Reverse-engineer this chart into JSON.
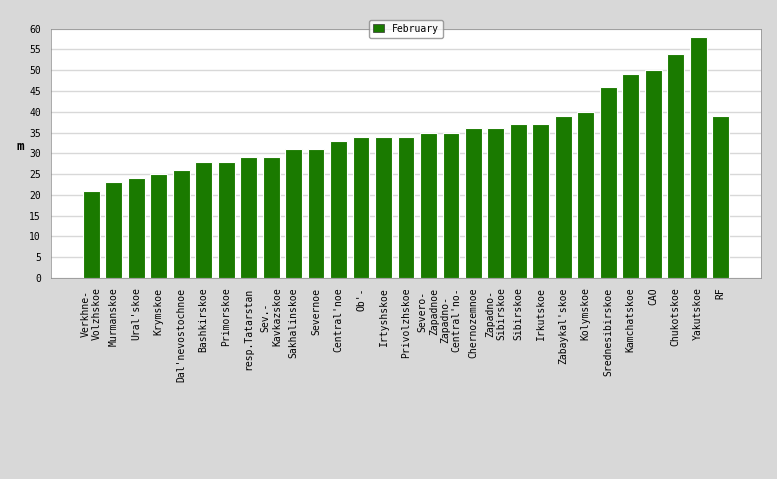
{
  "categories": [
    "Verkhne-\nVolzhskoe",
    "Murmanskoe",
    "Ural'skoe",
    "Krymskoe",
    "Dal'nevostochnoe",
    "Bashkirskoe",
    "Primorskoe",
    "resp.Tatarstan",
    "Sev.-\nKavkazskoe",
    "Sakhalinskoe",
    "Severnoe",
    "Central'noe",
    "Ob'-",
    "Irtyshskoe",
    "Privolzhskoe",
    "Severo-\nZapadnoe",
    "Zapadno-\nCentral'no-",
    "Chernozemnoe",
    "Zapadno-\nSibirskoe",
    "Sibirskoe",
    "Irkutskoe",
    "Zabaykal'skoe",
    "Kolymskoe",
    "Srednesibirskoe",
    "Kamchatskoe",
    "CAO",
    "Chukotskoe",
    "Yakutskoe",
    "RF"
  ],
  "values": [
    21,
    23,
    24,
    25,
    26,
    28,
    28,
    29,
    29,
    31,
    31,
    33,
    34,
    34,
    34,
    35,
    35,
    36,
    36,
    37,
    37,
    39,
    40,
    46,
    49,
    50,
    54,
    58,
    39
  ],
  "bar_color": "#1a7a00",
  "bar_edge_color": "#ffffff",
  "legend_label": "February",
  "ylabel": "m",
  "ylim": [
    0,
    60
  ],
  "yticks": [
    0,
    5,
    10,
    15,
    20,
    25,
    30,
    35,
    40,
    45,
    50,
    55,
    60
  ],
  "outer_bg_color": "#d8d8d8",
  "plot_bg_color": "#ffffff",
  "grid_color": "#d8d8d8",
  "tick_fontsize": 7,
  "label_fontsize": 9
}
